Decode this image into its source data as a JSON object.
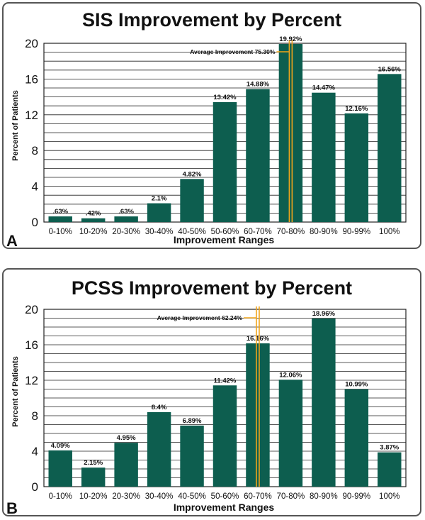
{
  "chart_data": [
    {
      "type": "bar",
      "panel_label": "A",
      "title": "SIS Improvement by Percent",
      "xlabel": "Improvement Ranges",
      "ylabel": "Percent of Patients",
      "categories": [
        "0-10%",
        "10-20%",
        "20-30%",
        "30-40%",
        "40-50%",
        "50-60%",
        "60-70%",
        "70-80%",
        "80-90%",
        "90-99%",
        "100%"
      ],
      "values": [
        0.63,
        0.42,
        0.63,
        2.1,
        4.82,
        13.42,
        14.88,
        19.92,
        14.47,
        12.16,
        16.56
      ],
      "data_labels": [
        ".63%",
        ".42%",
        ".63%",
        "2.1%",
        "4.82%",
        "13.42%",
        "14.88%",
        "19.92%",
        "14.47%",
        "12.16%",
        "16.56%"
      ],
      "ylim": [
        0,
        20
      ],
      "yticks": [
        0,
        4,
        8,
        12,
        16,
        20
      ],
      "grid": true,
      "average_line": {
        "label": "Average Improvement 75.30%",
        "category_index": 7
      },
      "bar_color": "#0d5e4f",
      "line_color": "#f2a51a"
    },
    {
      "type": "bar",
      "panel_label": "B",
      "title": "PCSS Improvement by Percent",
      "xlabel": "Improvement Ranges",
      "ylabel": "Percent of Patients",
      "categories": [
        "0-10%",
        "10-20%",
        "20-30%",
        "30-40%",
        "40-50%",
        "50-60%",
        "60-70%",
        "70-80%",
        "80-90%",
        "90-99%",
        "100%"
      ],
      "values": [
        4.09,
        2.15,
        4.95,
        8.4,
        6.89,
        11.42,
        16.16,
        12.06,
        18.96,
        10.99,
        3.87
      ],
      "data_labels": [
        "4.09%",
        "2.15%",
        "4.95%",
        "8.4%",
        "6.89%",
        "11.42%",
        "16.16%",
        "12.06%",
        "18.96%",
        "10.99%",
        "3.87%"
      ],
      "ylim": [
        0,
        20
      ],
      "yticks": [
        0,
        4,
        8,
        12,
        16,
        20
      ],
      "grid": true,
      "average_line": {
        "label": "Average Improvement 62.24%",
        "category_index": 6
      },
      "bar_color": "#0d5e4f",
      "line_color": "#f2a51a"
    }
  ]
}
